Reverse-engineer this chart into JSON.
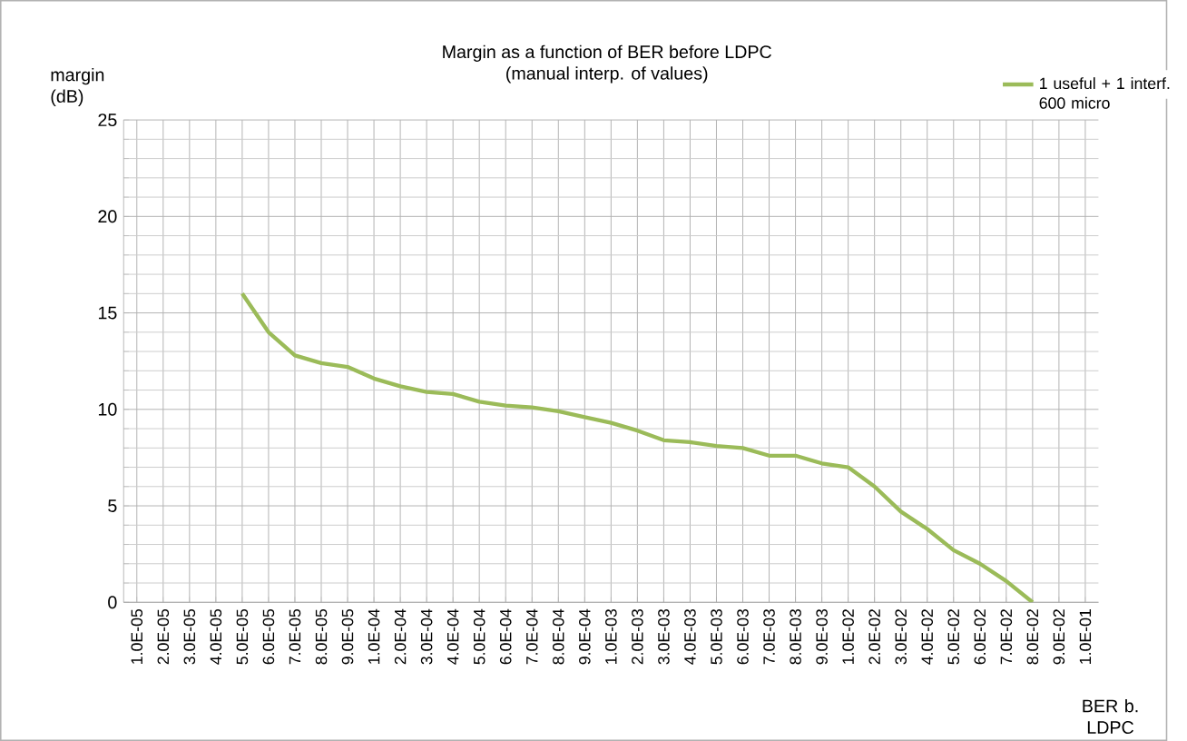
{
  "chart_data": {
    "type": "line",
    "title": "Margin as a function of BER before LDPC",
    "subtitle": "(manual interp. of values)",
    "xlabel": "BER b. LDPC",
    "ylabel": "margin (dB)",
    "categories": [
      "1.0E-05",
      "2.0E-05",
      "3.0E-05",
      "4.0E-05",
      "5.0E-05",
      "6.0E-05",
      "7.0E-05",
      "8.0E-05",
      "9.0E-05",
      "1.0E-04",
      "2.0E-04",
      "3.0E-04",
      "4.0E-04",
      "5.0E-04",
      "6.0E-04",
      "7.0E-04",
      "8.0E-04",
      "9.0E-04",
      "1.0E-03",
      "2.0E-03",
      "3.0E-03",
      "4.0E-03",
      "5.0E-03",
      "6.0E-03",
      "7.0E-03",
      "8.0E-03",
      "9.0E-03",
      "1.0E-02",
      "2.0E-02",
      "3.0E-02",
      "4.0E-02",
      "5.0E-02",
      "6.0E-02",
      "7.0E-02",
      "8.0E-02",
      "9.0E-02",
      "1.0E-01"
    ],
    "series": [
      {
        "name": "1 useful + 1 interf. 600 micro",
        "color": "#9bbb59",
        "values": [
          null,
          null,
          null,
          null,
          16,
          14,
          12.8,
          12.4,
          12.2,
          11.6,
          11.2,
          10.9,
          10.8,
          10.4,
          10.2,
          10.1,
          9.9,
          9.6,
          9.3,
          8.9,
          8.4,
          8.3,
          8.1,
          8.0,
          7.6,
          7.6,
          7.2,
          7.0,
          6.0,
          4.7,
          3.8,
          2.7,
          2.0,
          1.1,
          0,
          null,
          null
        ]
      }
    ],
    "ylim": [
      0,
      25
    ],
    "yticks": [
      0,
      5,
      10,
      15,
      20,
      25
    ],
    "grid": true,
    "legend": "top right",
    "marker": "none",
    "line_style": "solid"
  }
}
